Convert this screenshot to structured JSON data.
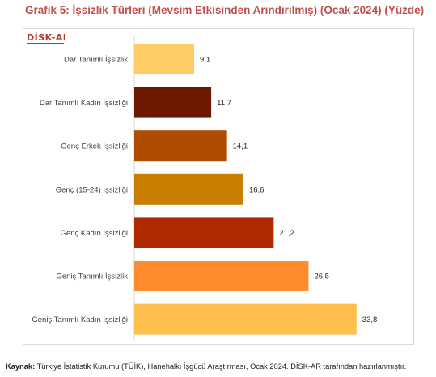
{
  "title": "Grafik 5: İşsizlik Türleri (Mevsim Etkisinden Arındırılmış) (Ocak 2024) (Yüzde)",
  "logo_text": "DİSK-AR",
  "source_label": "Kaynak:",
  "source_text": "Türkiye İstatistik Kurumu (TÜİK), Hanehalkı İşgücü Araştırması, Ocak 2024. DİSK-AR tarafından hazırlanmıştır.",
  "chart_data": {
    "type": "bar",
    "orientation": "horizontal",
    "title": "Grafik 5: İşsizlik Türleri (Mevsim Etkisinden Arındırılmış) (Ocak 2024) (Yüzde)",
    "categories": [
      "Dar Tanımlı İşsizlik",
      "Dar Tanımlı Kadın İşsizliği",
      "Genç Erkek İşsizliği",
      "Genç (15-24) İşsizliği",
      "Genç Kadın İşsizliği",
      "Geniş Tanımlı İşsizlik",
      "Geniş Tanımlı Kadın İşsizliği"
    ],
    "values": [
      9.1,
      11.7,
      14.1,
      16.6,
      21.2,
      26.5,
      33.8
    ],
    "value_labels": [
      "9,1",
      "11,7",
      "14,1",
      "16,6",
      "21,2",
      "26,5",
      "33,8"
    ],
    "colors": [
      "#ffcc66",
      "#6e1a00",
      "#b04c00",
      "#c87f00",
      "#b02a00",
      "#ff8b2c",
      "#ffc04d"
    ],
    "xlim": [
      0,
      36
    ],
    "grid": false,
    "legend": "none"
  }
}
